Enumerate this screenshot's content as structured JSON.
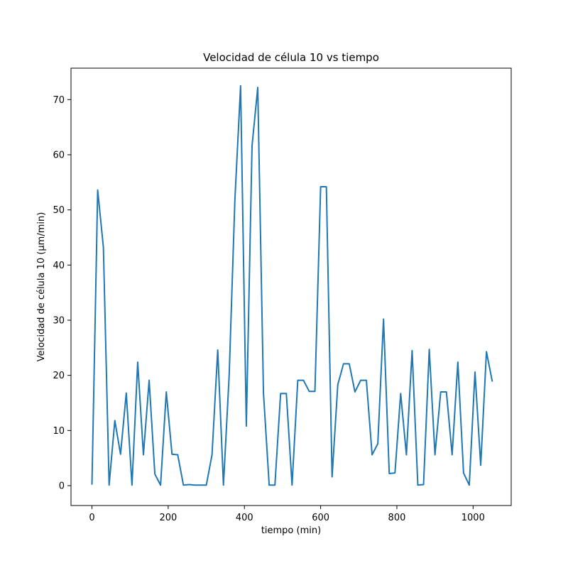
{
  "chart_data": {
    "type": "line",
    "title": "Velocidad de célula 10 vs tiempo",
    "xlabel": "tiempo (min)",
    "ylabel": "Velocidad de célula 10 (μm/min)",
    "xlim": [
      -55,
      1100
    ],
    "ylim": [
      -3.6,
      75.7
    ],
    "xticks": [
      0,
      200,
      400,
      600,
      800,
      1000
    ],
    "yticks": [
      0,
      10,
      20,
      30,
      40,
      50,
      60,
      70
    ],
    "grid": false,
    "line_color": "#1f77b4",
    "series": [
      {
        "x": [
          0,
          15,
          30,
          45,
          60,
          75,
          90,
          105,
          120,
          135,
          150,
          165,
          180,
          195,
          210,
          225,
          240,
          255,
          270,
          285,
          300,
          315,
          330,
          345,
          360,
          375,
          390,
          405,
          420,
          435,
          450,
          465,
          480,
          495,
          510,
          525,
          540,
          555,
          570,
          585,
          600,
          615,
          630,
          645,
          660,
          675,
          690,
          705,
          720,
          735,
          750,
          765,
          780,
          795,
          810,
          825,
          840,
          855,
          870,
          885,
          900,
          915,
          930,
          945,
          960,
          975,
          990,
          1005,
          1020,
          1035,
          1050
        ],
        "y": [
          0.3,
          53.6,
          43.2,
          0.1,
          11.8,
          5.7,
          16.8,
          0.1,
          22.4,
          5.6,
          19.1,
          2.1,
          0.1,
          17.0,
          5.7,
          5.6,
          0.1,
          0.2,
          0.1,
          0.1,
          0.1,
          5.6,
          24.6,
          0.1,
          20.0,
          51.8,
          72.5,
          10.8,
          61.6,
          72.2,
          16.8,
          0.1,
          0.1,
          16.7,
          16.7,
          0.1,
          19.1,
          19.1,
          17.1,
          17.1,
          54.2,
          54.2,
          1.6,
          18.3,
          22.1,
          22.1,
          17.0,
          19.1,
          19.1,
          5.6,
          7.6,
          30.2,
          2.2,
          2.3,
          16.7,
          5.6,
          24.5,
          0.1,
          0.2,
          24.7,
          5.6,
          17.0,
          17.0,
          5.6,
          22.4,
          2.3,
          0.1,
          20.6,
          3.7,
          24.3,
          19.0
        ]
      }
    ]
  }
}
